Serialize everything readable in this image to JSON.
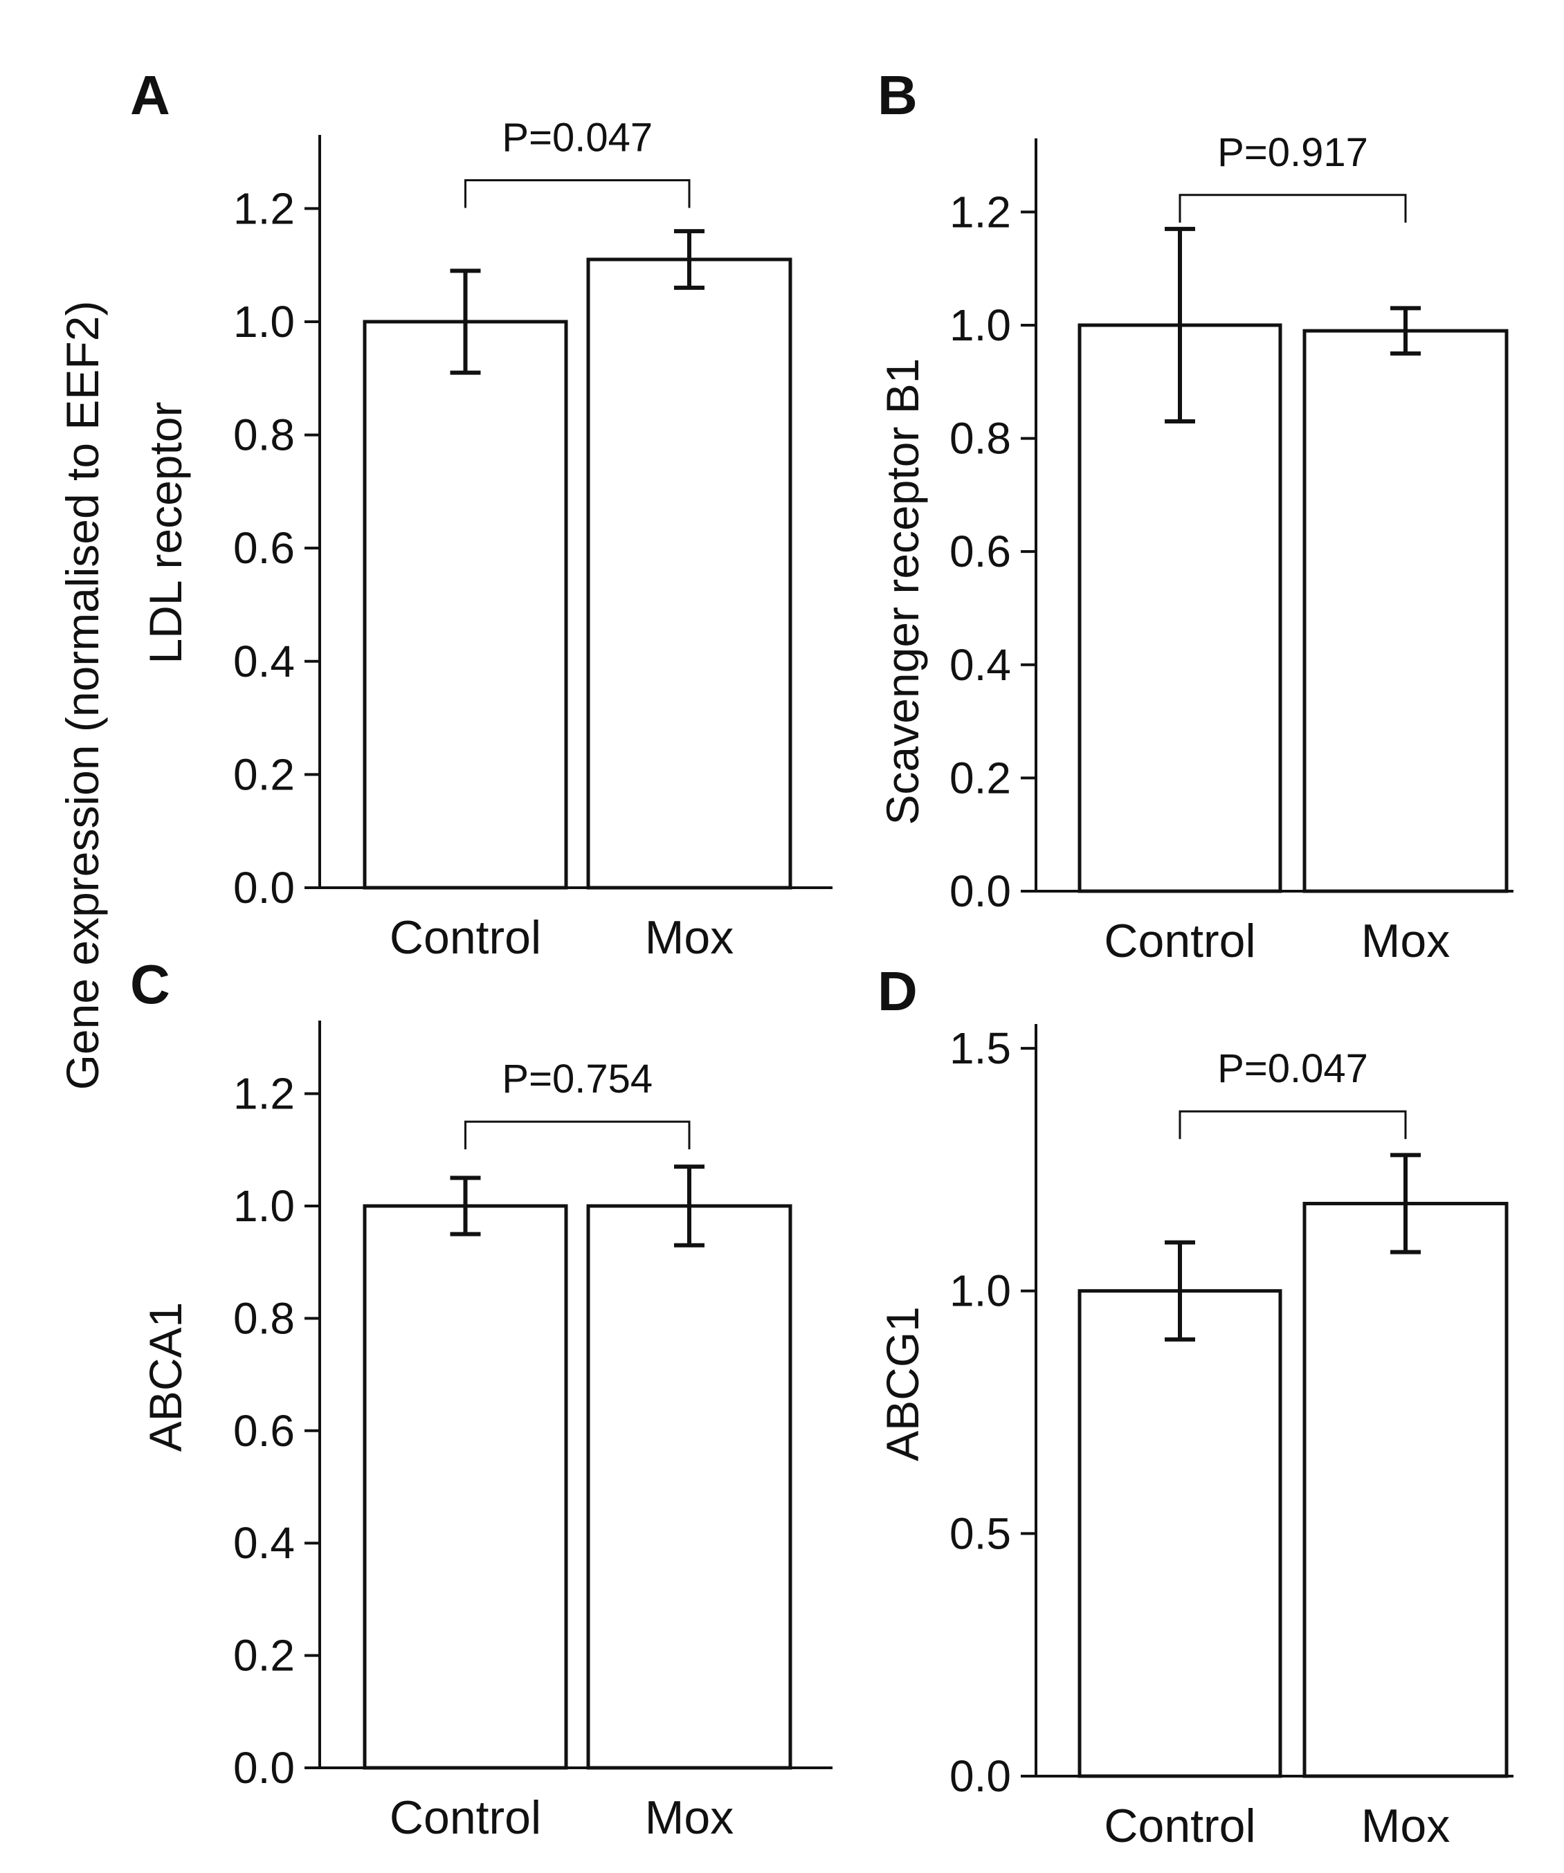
{
  "figure": {
    "shared_ylabel": "Gene expression (normalised to EEF2)"
  },
  "chart_data": [
    {
      "type": "bar",
      "panel": "A",
      "ylabel": "LDL receptor",
      "categories": [
        "Control",
        "Mox"
      ],
      "values": [
        1.0,
        1.11
      ],
      "errors": [
        0.09,
        0.05
      ],
      "ylim": [
        0,
        1.33
      ],
      "yticks": [
        0.0,
        0.2,
        0.4,
        0.6,
        0.8,
        1.0,
        1.2
      ],
      "tick_labels": [
        "0.0",
        "0.2",
        "0.4",
        "0.6",
        "0.8",
        "1.0",
        "1.2"
      ],
      "annotation": "P=0.047",
      "bracket_y": 1.25
    },
    {
      "type": "bar",
      "panel": "B",
      "ylabel": "Scavenger receptor B1",
      "categories": [
        "Control",
        "Mox"
      ],
      "values": [
        1.0,
        0.99
      ],
      "errors": [
        0.17,
        0.04
      ],
      "ylim": [
        0,
        1.33
      ],
      "yticks": [
        0.0,
        0.2,
        0.4,
        0.6,
        0.8,
        1.0,
        1.2
      ],
      "tick_labels": [
        "0.0",
        "0.2",
        "0.4",
        "0.6",
        "0.8",
        "1.0",
        "1.2"
      ],
      "annotation": "P=0.917",
      "bracket_y": 1.23
    },
    {
      "type": "bar",
      "panel": "C",
      "ylabel": "ABCA1",
      "categories": [
        "Control",
        "Mox"
      ],
      "values": [
        1.0,
        1.0
      ],
      "errors": [
        0.05,
        0.07
      ],
      "ylim": [
        0,
        1.33
      ],
      "yticks": [
        0.0,
        0.2,
        0.4,
        0.6,
        0.8,
        1.0,
        1.2
      ],
      "tick_labels": [
        "0.0",
        "0.2",
        "0.4",
        "0.6",
        "0.8",
        "1.0",
        "1.2"
      ],
      "annotation": "P=0.754",
      "bracket_y": 1.15
    },
    {
      "type": "bar",
      "panel": "D",
      "ylabel": "ABCG1",
      "categories": [
        "Control",
        "Mox"
      ],
      "values": [
        1.0,
        1.18
      ],
      "errors": [
        0.1,
        0.1
      ],
      "ylim": [
        0,
        1.55
      ],
      "yticks": [
        0.0,
        0.5,
        1.0,
        1.5
      ],
      "tick_labels": [
        "0.0",
        "0.5",
        "1.0",
        "1.5"
      ],
      "annotation": "P=0.047",
      "bracket_y": 1.37
    }
  ]
}
